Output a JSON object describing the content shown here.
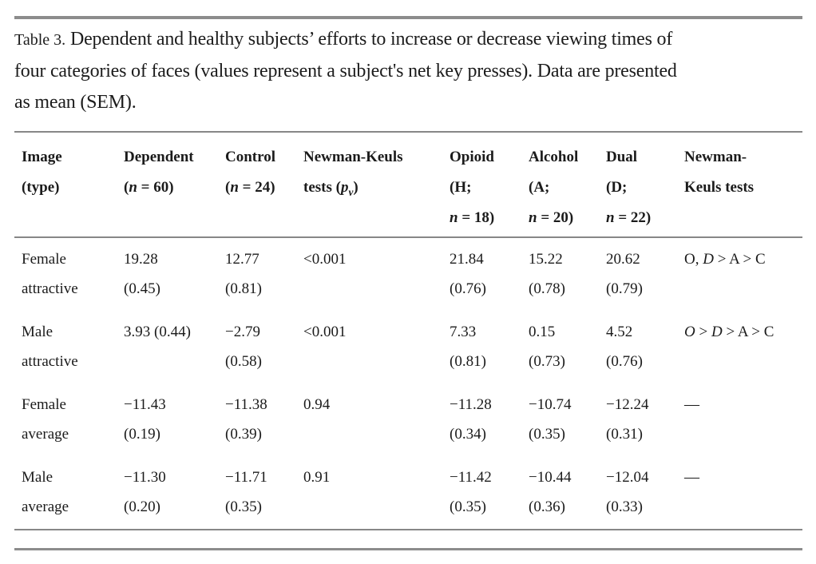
{
  "caption": {
    "label": "Table 3.",
    "lines": [
      "Dependent and healthy subjects’ efforts to increase or decrease viewing times of",
      "four categories of faces (values represent a subject's net key presses). Data are presented",
      "as mean (SEM)."
    ]
  },
  "table": {
    "columns": [
      {
        "id": "image-type",
        "lines": [
          "Image",
          "(type)"
        ]
      },
      {
        "id": "dependent",
        "lines": [
          "Dependent",
          "(*n* = 60)"
        ]
      },
      {
        "id": "control",
        "lines": [
          "Control",
          "(*n* = 24)"
        ]
      },
      {
        "id": "newman-keuls-pv",
        "lines": [
          "Newman-Keuls",
          "tests (*p*~v~)"
        ]
      },
      {
        "id": "opioid",
        "lines": [
          "Opioid",
          "(H;",
          "*n* = 18)"
        ]
      },
      {
        "id": "alcohol",
        "lines": [
          "Alcohol",
          "(A;",
          "*n* = 20)"
        ]
      },
      {
        "id": "dual",
        "lines": [
          "Dual",
          "(D;",
          "*n* = 22)"
        ]
      },
      {
        "id": "newman-keuls",
        "lines": [
          "Newman-",
          "Keuls tests"
        ]
      }
    ],
    "rows": [
      {
        "cells": [
          [
            "Female",
            "attractive"
          ],
          [
            "19.28",
            "(0.45)"
          ],
          [
            "12.77",
            "(0.81)"
          ],
          [
            "<0.001"
          ],
          [
            "21.84",
            "(0.76)"
          ],
          [
            "15.22",
            "(0.78)"
          ],
          [
            "20.62",
            "(0.79)"
          ],
          [
            "O, *D* > A > C"
          ]
        ]
      },
      {
        "cells": [
          [
            "Male",
            "attractive"
          ],
          [
            "3.93 (0.44)"
          ],
          [
            "−2.79",
            "(0.58)"
          ],
          [
            "<0.001"
          ],
          [
            "7.33",
            "(0.81)"
          ],
          [
            "0.15",
            "(0.73)"
          ],
          [
            "4.52",
            "(0.76)"
          ],
          [
            "*O* > *D* > A > C"
          ]
        ]
      },
      {
        "cells": [
          [
            "Female",
            "average"
          ],
          [
            "−11.43",
            "(0.19)"
          ],
          [
            "−11.38",
            "(0.39)"
          ],
          [
            "0.94"
          ],
          [
            "−11.28",
            "(0.34)"
          ],
          [
            "−10.74",
            "(0.35)"
          ],
          [
            "−12.24",
            "(0.31)"
          ],
          [
            "—"
          ]
        ]
      },
      {
        "cells": [
          [
            "Male",
            "average"
          ],
          [
            "−11.30",
            "(0.20)"
          ],
          [
            "−11.71",
            "(0.35)"
          ],
          [
            "0.91"
          ],
          [
            "−11.42",
            "(0.35)"
          ],
          [
            "−10.44",
            "(0.36)"
          ],
          [
            "−12.04",
            "(0.33)"
          ],
          [
            "—"
          ]
        ]
      }
    ]
  },
  "colors": {
    "rule": "#8c8c8c",
    "text": "#1b1b1b"
  }
}
